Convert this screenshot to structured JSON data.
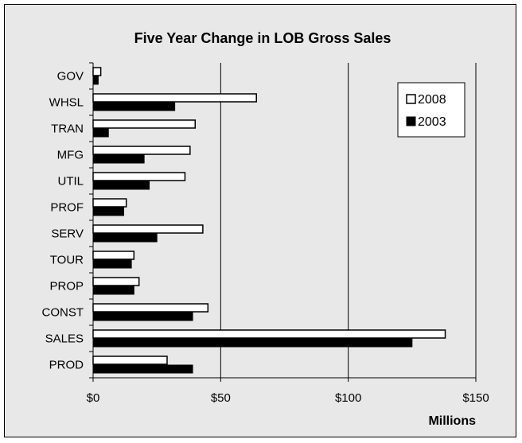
{
  "chart_data": {
    "type": "bar",
    "orientation": "horizontal",
    "title": "Five Year Change in LOB Gross Sales",
    "xlabel": "Millions",
    "ylabel": "",
    "categories": [
      "GOV",
      "WHSL",
      "TRAN",
      "MFG",
      "UTIL",
      "PROF",
      "SERV",
      "TOUR",
      "PROP",
      "CONST",
      "SALES",
      "PROD"
    ],
    "series": [
      {
        "name": "2008",
        "color": "#ffffff",
        "values": [
          3,
          64,
          40,
          38,
          36,
          13,
          43,
          16,
          18,
          45,
          138,
          29
        ]
      },
      {
        "name": "2003",
        "color": "#000000",
        "values": [
          2,
          32,
          6,
          20,
          22,
          12,
          25,
          15,
          16,
          39,
          125,
          39
        ]
      }
    ],
    "xlim": [
      0,
      150
    ],
    "x_ticks": [
      0,
      50,
      100,
      150
    ],
    "x_tick_labels": [
      "$0",
      "$50",
      "$100",
      "$150"
    ],
    "grid": "vertical",
    "legend_position": "top-right",
    "plot_background": "#e8e8e8"
  }
}
